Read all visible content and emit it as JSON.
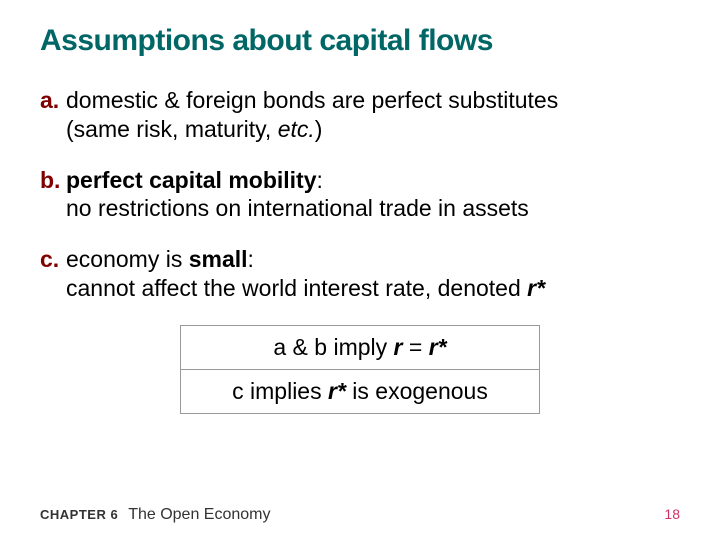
{
  "title": "Assumptions about capital flows",
  "items": {
    "a": {
      "marker": "a.",
      "line1": "domestic & foreign bonds are perfect substitutes",
      "line2_prefix": "(same risk, maturity, ",
      "line2_ital": "etc.",
      "line2_suffix": ")"
    },
    "b": {
      "marker": "b.",
      "bold_part": "perfect capital mobility",
      "colon_line": ":",
      "line2": "no restrictions on international trade in assets"
    },
    "c": {
      "marker": "c.",
      "prefix": "economy is ",
      "bold_part": "small",
      "colon": ":",
      "line2_prefix": "cannot affect the world interest rate, denoted ",
      "rstar": "r*"
    }
  },
  "box": {
    "row1_prefix": "a & b imply ",
    "row1_r": "r",
    "row1_eq": " = ",
    "row1_rstar": "r*",
    "row2_prefix": "c implies ",
    "row2_rstar": "r*",
    "row2_suffix": " is exogenous"
  },
  "footer": {
    "chapter_label": "CHAPTER 6",
    "chapter_title": "The Open Economy",
    "page": "18"
  },
  "colors": {
    "title": "#006666",
    "marker": "#800000",
    "page": "#cc3366",
    "border": "#999999"
  }
}
